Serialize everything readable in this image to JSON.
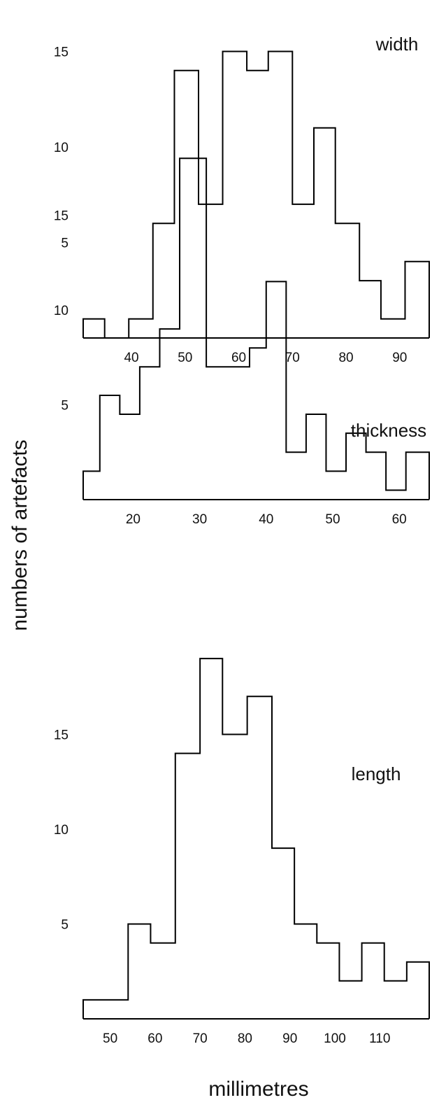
{
  "chart_data": {
    "type": "histogram",
    "ylabel": "numbers of artefacts",
    "xlabel": "millimetres",
    "panels": [
      {
        "title": "width",
        "type": "bar",
        "bin_edges": [
          31,
          35,
          39.5,
          44,
          48,
          52.5,
          57,
          61.5,
          65.5,
          70,
          74,
          78,
          82.5,
          86.5,
          91,
          95.5
        ],
        "values": [
          1,
          0,
          1,
          6,
          14,
          7,
          15,
          14,
          15,
          7,
          11,
          6,
          3,
          1,
          4
        ],
        "x_ticks": [
          40,
          50,
          60,
          70,
          80,
          90
        ],
        "y_ticks": [
          5,
          10,
          15
        ],
        "xlim": [
          31,
          95.5
        ],
        "ylim": [
          0,
          16
        ]
      },
      {
        "title": "thickness",
        "type": "bar",
        "bin_edges": [
          12.5,
          15,
          18,
          21,
          24,
          27,
          31,
          34,
          37.5,
          40,
          43,
          46,
          49,
          52,
          55,
          58,
          61,
          64.5
        ],
        "values": [
          1.5,
          5.5,
          4.5,
          7,
          9,
          18,
          7,
          7,
          8,
          11.5,
          2.5,
          4.5,
          1.5,
          3.5,
          2.5,
          0.5,
          2.5
        ],
        "x_ticks": [
          20,
          30,
          40,
          50,
          60
        ],
        "y_ticks": [
          5,
          10,
          15
        ],
        "xlim": [
          12.5,
          64.5
        ],
        "ylim": [
          0,
          18
        ]
      },
      {
        "title": "length",
        "type": "bar",
        "bin_edges": [
          44,
          49,
          54,
          59,
          64.5,
          70,
          75,
          80.5,
          86,
          91,
          96,
          101,
          106,
          111,
          116,
          121
        ],
        "values": [
          1,
          1,
          5,
          4,
          14,
          19,
          15,
          17,
          9,
          5,
          4,
          2,
          4,
          2,
          3
        ],
        "x_ticks": [
          50,
          60,
          70,
          80,
          90,
          100,
          110
        ],
        "y_ticks": [
          5,
          10,
          15
        ],
        "xlim": [
          44,
          121
        ],
        "ylim": [
          0,
          19
        ]
      }
    ]
  }
}
